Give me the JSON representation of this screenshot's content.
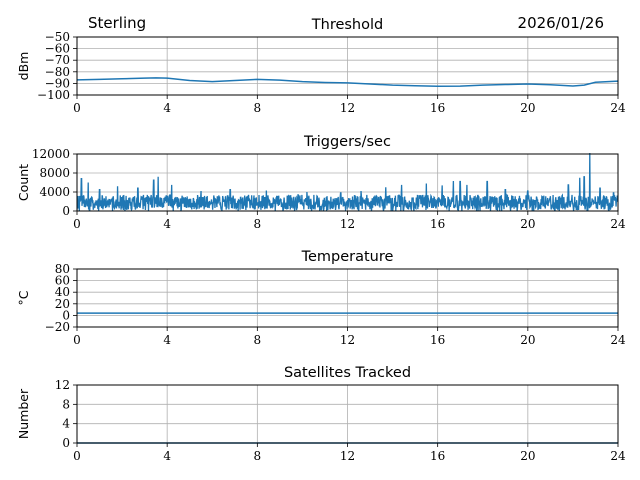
{
  "header": {
    "left": "Sterling",
    "date": "2026/01/26"
  },
  "chart_data": [
    {
      "type": "line",
      "title": "Threshold",
      "ylabel": "dBm",
      "xlim": [
        0,
        24
      ],
      "ylim": [
        -100,
        -50
      ],
      "xticks": [
        "0",
        "4",
        "8",
        "12",
        "16",
        "20",
        "24"
      ],
      "yticks": [
        "−100",
        "−90",
        "−80",
        "−70",
        "−60",
        "−50"
      ],
      "grid": true,
      "series": [
        {
          "color": "#1f77b4",
          "x": [
            0,
            1,
            2,
            3,
            3.5,
            4,
            5,
            6,
            7,
            8,
            9,
            10,
            11,
            12,
            13,
            14,
            15,
            16,
            17,
            18,
            19,
            20,
            21,
            22,
            22.5,
            23,
            24
          ],
          "y": [
            -87,
            -86.5,
            -86,
            -85.5,
            -85.2,
            -85.5,
            -87.5,
            -88.5,
            -87.5,
            -86.5,
            -87.2,
            -88.5,
            -89.2,
            -89.5,
            -90.5,
            -91.5,
            -92,
            -92.5,
            -92.3,
            -91.5,
            -91,
            -90.5,
            -91.2,
            -92.2,
            -91.5,
            -89,
            -88
          ]
        }
      ]
    },
    {
      "type": "line",
      "title": "Triggers/sec",
      "ylabel": "Count",
      "xlim": [
        0,
        24
      ],
      "ylim": [
        0,
        12000
      ],
      "xticks": [
        "0",
        "4",
        "8",
        "12",
        "16",
        "20",
        "24"
      ],
      "yticks": [
        "0",
        "4000",
        "8000",
        "12000"
      ],
      "grid": true,
      "baseline": 1800,
      "noise": 1600,
      "spikes": [
        {
          "x": 0.2,
          "y": 6800
        },
        {
          "x": 0.5,
          "y": 6000
        },
        {
          "x": 1.0,
          "y": 4500
        },
        {
          "x": 1.8,
          "y": 5200
        },
        {
          "x": 2.7,
          "y": 4800
        },
        {
          "x": 3.4,
          "y": 6500
        },
        {
          "x": 3.6,
          "y": 7200
        },
        {
          "x": 4.2,
          "y": 5500
        },
        {
          "x": 5.5,
          "y": 4200
        },
        {
          "x": 6.8,
          "y": 4500
        },
        {
          "x": 8.4,
          "y": 4300
        },
        {
          "x": 10.2,
          "y": 4000
        },
        {
          "x": 11.7,
          "y": 3800
        },
        {
          "x": 12.6,
          "y": 4200
        },
        {
          "x": 13.7,
          "y": 5000
        },
        {
          "x": 14.4,
          "y": 5500
        },
        {
          "x": 15.5,
          "y": 5800
        },
        {
          "x": 16.2,
          "y": 5400
        },
        {
          "x": 16.7,
          "y": 6300
        },
        {
          "x": 17.0,
          "y": 6200
        },
        {
          "x": 17.3,
          "y": 5500
        },
        {
          "x": 18.2,
          "y": 6200
        },
        {
          "x": 19.0,
          "y": 4500
        },
        {
          "x": 20.0,
          "y": 4200
        },
        {
          "x": 21.8,
          "y": 5500
        },
        {
          "x": 22.3,
          "y": 7000
        },
        {
          "x": 22.5,
          "y": 7200
        },
        {
          "x": 22.75,
          "y": 12200
        },
        {
          "x": 23.2,
          "y": 4800
        },
        {
          "x": 23.8,
          "y": 3800
        }
      ]
    },
    {
      "type": "line",
      "title": "Temperature",
      "ylabel": "°C",
      "xlim": [
        0,
        24
      ],
      "ylim": [
        -20,
        80
      ],
      "xticks": [
        "0",
        "4",
        "8",
        "12",
        "16",
        "20",
        "24"
      ],
      "yticks": [
        "−20",
        "0",
        "20",
        "40",
        "60",
        "80"
      ],
      "grid": true,
      "series": [
        {
          "color": "#1f77b4",
          "x": [
            0,
            24
          ],
          "y": [
            4,
            4
          ]
        }
      ]
    },
    {
      "type": "line",
      "title": "Satellites Tracked",
      "ylabel": "Number",
      "xlim": [
        0,
        24
      ],
      "ylim": [
        0,
        12
      ],
      "xticks": [
        "0",
        "4",
        "8",
        "12",
        "16",
        "20",
        "24"
      ],
      "yticks": [
        "0",
        "4",
        "8",
        "12"
      ],
      "grid": true,
      "series": [
        {
          "color": "#1f77b4",
          "x": [
            0,
            24
          ],
          "y": [
            0,
            0
          ]
        }
      ]
    }
  ]
}
